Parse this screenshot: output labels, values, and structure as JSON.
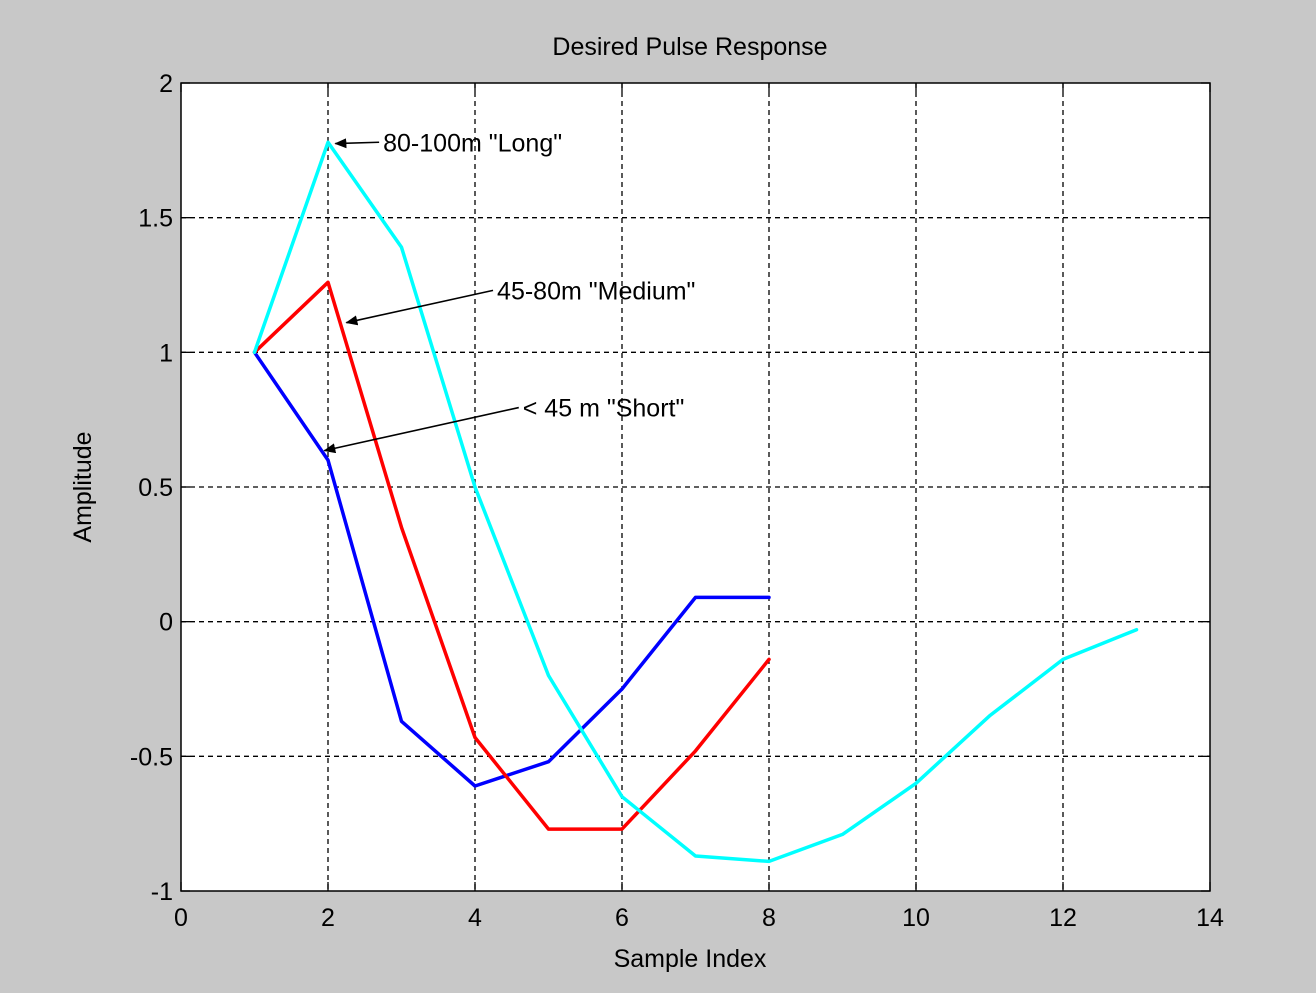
{
  "chart_data": {
    "type": "line",
    "title": "Desired Pulse Response",
    "xlabel": "Sample Index",
    "ylabel": "Amplitude",
    "xlim": [
      0,
      14
    ],
    "ylim": [
      -1,
      2
    ],
    "xticks": [
      0,
      2,
      4,
      6,
      8,
      10,
      12,
      14
    ],
    "yticks": [
      -1,
      -0.5,
      0,
      0.5,
      1,
      1.5,
      2
    ],
    "xtick_labels": [
      "0",
      "2",
      "4",
      "6",
      "8",
      "10",
      "12",
      "14"
    ],
    "ytick_labels": [
      "-1",
      "-0.5",
      "0",
      "0.5",
      "1",
      "1.5",
      "2"
    ],
    "grid": true,
    "background": "#c8c8c8",
    "plot_background": "#ffffff",
    "series": [
      {
        "color": "#0000ff",
        "x": [
          1,
          2,
          3,
          4,
          5,
          6,
          7,
          8
        ],
        "y": [
          1.0,
          0.6,
          -0.37,
          -0.61,
          -0.52,
          -0.25,
          0.09,
          0.09
        ]
      },
      {
        "color": "#ff0000",
        "x": [
          1,
          1.5,
          2,
          3,
          4,
          5,
          6,
          7,
          8
        ],
        "y": [
          1.0,
          1.13,
          1.26,
          0.35,
          -0.43,
          -0.77,
          -0.77,
          -0.48,
          -0.14
        ]
      },
      {
        "color": "#00ffff",
        "x": [
          1,
          2,
          3,
          4,
          5,
          6,
          7,
          8,
          9,
          10,
          11,
          12,
          13
        ],
        "y": [
          1.0,
          1.78,
          1.39,
          0.5,
          -0.2,
          -0.65,
          -0.87,
          -0.89,
          -0.79,
          -0.6,
          -0.35,
          -0.14,
          -0.03
        ]
      }
    ],
    "annotations": [
      {
        "text": "80-100m \"Long\"",
        "text_x": 2.75,
        "text_y": 1.78,
        "arrow_to_x": 2.1,
        "arrow_to_y": 1.775
      },
      {
        "text": "45-80m \"Medium\"",
        "text_x": 4.3,
        "text_y": 1.23,
        "arrow_to_x": 2.25,
        "arrow_to_y": 1.11
      },
      {
        "text": "< 45 m \"Short\"",
        "text_x": 4.65,
        "text_y": 0.795,
        "arrow_to_x": 1.95,
        "arrow_to_y": 0.635
      }
    ]
  }
}
